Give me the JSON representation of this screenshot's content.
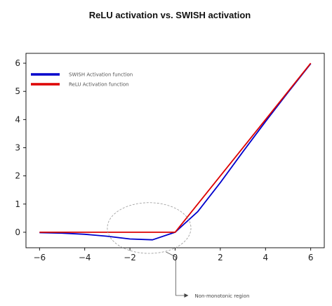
{
  "chart_data": {
    "type": "line",
    "title": "ReLU activation vs. SWISH activation",
    "xlabel": "",
    "ylabel": "",
    "xlim": [
      -6.6,
      6.6
    ],
    "ylim": [
      -0.55,
      6.35
    ],
    "x_ticks": [
      -6,
      -4,
      -2,
      0,
      2,
      4,
      6
    ],
    "x_tick_labels": [
      "−6",
      "−4",
      "−2",
      "0",
      "2",
      "4",
      "6"
    ],
    "y_ticks": [
      0,
      1,
      2,
      3,
      4,
      5,
      6
    ],
    "y_tick_labels": [
      "0",
      "1",
      "2",
      "3",
      "4",
      "5",
      "6"
    ],
    "grid": false,
    "legend_position": "top-left",
    "series": [
      {
        "name": "SWISH Activation function",
        "color": "#0000cc",
        "x": [
          -6,
          -5,
          -4,
          -3,
          -2,
          -1,
          0,
          1,
          2,
          3,
          4,
          5,
          6
        ],
        "y": [
          -0.015,
          -0.033,
          -0.072,
          -0.142,
          -0.238,
          -0.269,
          0,
          0.731,
          1.762,
          2.858,
          3.928,
          4.967,
          5.985
        ]
      },
      {
        "name": "ReLU Activation function",
        "color": "#dd0000",
        "x": [
          -6,
          0,
          6
        ],
        "y": [
          0,
          0,
          6
        ]
      }
    ],
    "annotations": [
      {
        "text": "Non-monotonic region",
        "ellipse_center": [
          -1.15,
          0.15
        ],
        "ellipse_radius": [
          1.85,
          0.9
        ]
      }
    ]
  }
}
